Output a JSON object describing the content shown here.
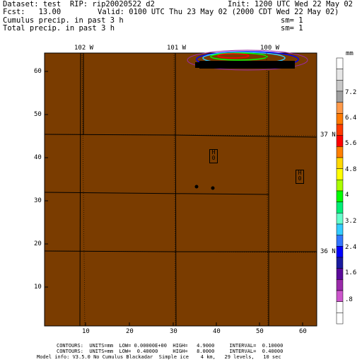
{
  "header": {
    "dataset": "Dataset: test  RIP: rip20020522 d2",
    "init": "Init: 1200 UTC Wed 22 May 02",
    "fcst": "Fcst:   13.00",
    "valid": "Valid: 0100 UTC Thu 23 May 02 (2000 CDT Wed 22 May 02)",
    "field1": "Cumulus precip. in past 3 h",
    "field1_sm": "sm= 1",
    "field2": "Total precip. in past 3 h",
    "field2_sm": "sm= 1"
  },
  "map": {
    "background_color": "#7a3c00",
    "x_ticks": [
      "10",
      "20",
      "30",
      "40",
      "50",
      "60"
    ],
    "y_ticks": [
      "10",
      "20",
      "30",
      "40",
      "50",
      "60"
    ],
    "lon_labels": [
      "102 W",
      "101 W",
      "100 W"
    ],
    "lat_labels": [
      "37 N",
      "36 N"
    ],
    "high_markers": [
      {
        "letter": "H",
        "value": "0"
      },
      {
        "letter": "H",
        "value": "0"
      }
    ]
  },
  "colorbar": {
    "unit": "mm",
    "labels": [
      "7.2",
      "6.4",
      "5.6",
      "4.8",
      "4",
      "3.2",
      "2.4",
      "1.6",
      ".8"
    ],
    "colors": [
      "#ffffff",
      "#e6e6e6",
      "#c8c8c8",
      "#a0a0a0",
      "#ff9a4a",
      "#ff7a00",
      "#ff3a00",
      "#ff0000",
      "#ff7f00",
      "#ffd800",
      "#ffff00",
      "#aaff00",
      "#00ff00",
      "#00ee77",
      "#66ffcc",
      "#33ccff",
      "#3377ff",
      "#0000ff",
      "#1a1aa0",
      "#5a0a9a",
      "#9a2aaa",
      "#cc55cc",
      "#ffffff",
      "#ffffff"
    ]
  },
  "footer": {
    "line1": "CONTOURS:  UNITS=mm  LOW= 0.00000E+00  HIGH=   4.9000     INTERVAL=  0.10000",
    "line2": "CONTOURS:  UNITS=mm  LOW=  0.40000     HIGH=   8.0000     INTERVAL=  0.40000",
    "line3": "Model info: V3.5.0 No Cumulus Blackadar  Simple ice    4 km,   29 levels,   10 sec"
  }
}
